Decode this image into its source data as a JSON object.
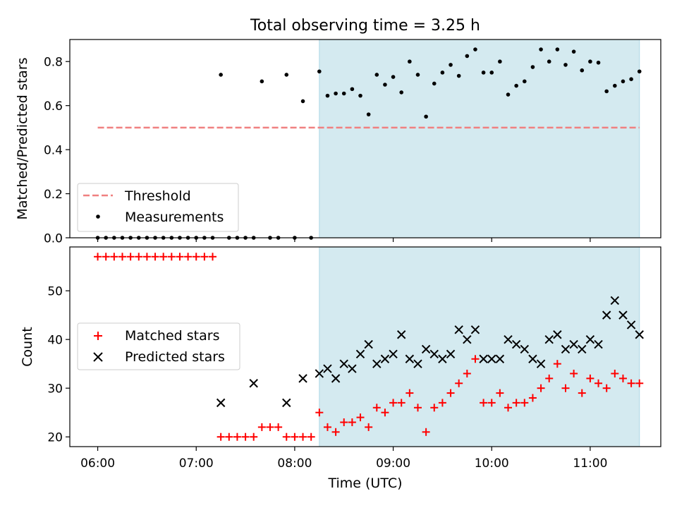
{
  "title": "Total observing time = 3.25 h",
  "colors": {
    "shade": "#d4eaf0",
    "shade_edge": "#add8e6",
    "threshold": "#f08080",
    "matched": "#ff0000",
    "predicted": "#000000",
    "measurement": "#000000"
  },
  "chart_data": [
    {
      "type": "scatter",
      "name": "ratio-panel",
      "ylabel": "Matched/Predicted stars",
      "ylim": [
        0,
        0.9
      ],
      "yticks": [
        0.0,
        0.2,
        0.4,
        0.6,
        0.8
      ],
      "ytick_labels": [
        "0.0",
        "0.2",
        "0.4",
        "0.6",
        "0.8"
      ],
      "legend_position": "lower-left",
      "shaded_interval": [
        "08:15",
        "11:30"
      ],
      "threshold": {
        "label": "Threshold",
        "value": 0.5,
        "x_range": [
          "06:00",
          "11:30"
        ]
      },
      "measurements": {
        "label": "Measurements",
        "x": [
          "06:00",
          "06:05",
          "06:10",
          "06:15",
          "06:20",
          "06:25",
          "06:30",
          "06:35",
          "06:40",
          "06:45",
          "06:50",
          "06:55",
          "07:00",
          "07:05",
          "07:10",
          "07:15",
          "07:20",
          "07:25",
          "07:30",
          "07:35",
          "07:40",
          "07:45",
          "07:50",
          "07:55",
          "08:00",
          "08:05",
          "08:10",
          "08:15",
          "08:20",
          "08:25",
          "08:30",
          "08:35",
          "08:40",
          "08:45",
          "08:50",
          "08:55",
          "09:00",
          "09:05",
          "09:10",
          "09:15",
          "09:20",
          "09:25",
          "09:30",
          "09:35",
          "09:40",
          "09:45",
          "09:50",
          "09:55",
          "10:00",
          "10:05",
          "10:10",
          "10:15",
          "10:20",
          "10:25",
          "10:30",
          "10:35",
          "10:40",
          "10:45",
          "10:50",
          "10:55",
          "11:00",
          "11:05",
          "11:10",
          "11:15",
          "11:20",
          "11:25",
          "11:30"
        ],
        "y": [
          0,
          0,
          0,
          0,
          0,
          0,
          0,
          0,
          0,
          0,
          0,
          0,
          0,
          0,
          0,
          0.74,
          0,
          0,
          0,
          0,
          0.71,
          0,
          0,
          0.74,
          0,
          0.62,
          0,
          0.755,
          0.645,
          0.655,
          0.655,
          0.675,
          0.645,
          0.56,
          0.74,
          0.695,
          0.73,
          0.66,
          0.8,
          0.74,
          0.55,
          0.7,
          0.75,
          0.785,
          0.735,
          0.825,
          0.855,
          0.75,
          0.75,
          0.8,
          0.65,
          0.69,
          0.71,
          0.775,
          0.855,
          0.8,
          0.855,
          0.785,
          0.845,
          0.76,
          0.8,
          0.795,
          0.665,
          0.69,
          0.71,
          0.72,
          0.755
        ]
      }
    },
    {
      "type": "scatter",
      "name": "count-panel",
      "ylabel": "Count",
      "xlabel": "Time (UTC)",
      "ylim": [
        18,
        59
      ],
      "yticks": [
        20,
        30,
        40,
        50
      ],
      "ytick_labels": [
        "20",
        "30",
        "40",
        "50"
      ],
      "xlim": [
        "05:43",
        "11:43"
      ],
      "xticks": [
        "06:00",
        "07:00",
        "08:00",
        "09:00",
        "10:00",
        "11:00"
      ],
      "xtick_labels": [
        "06:00",
        "07:00",
        "08:00",
        "09:00",
        "10:00",
        "11:00"
      ],
      "legend_position": "center-left",
      "shaded_interval": [
        "08:15",
        "11:30"
      ],
      "series": [
        {
          "name": "Matched stars",
          "marker": "plus",
          "x": [
            "06:00",
            "06:05",
            "06:10",
            "06:15",
            "06:20",
            "06:25",
            "06:30",
            "06:35",
            "06:40",
            "06:45",
            "06:50",
            "06:55",
            "07:00",
            "07:05",
            "07:10",
            "07:15",
            "07:20",
            "07:25",
            "07:30",
            "07:35",
            "07:40",
            "07:45",
            "07:50",
            "07:55",
            "08:00",
            "08:05",
            "08:10",
            "08:15",
            "08:20",
            "08:25",
            "08:30",
            "08:35",
            "08:40",
            "08:45",
            "08:50",
            "08:55",
            "09:00",
            "09:05",
            "09:10",
            "09:15",
            "09:20",
            "09:25",
            "09:30",
            "09:35",
            "09:40",
            "09:45",
            "09:50",
            "09:55",
            "10:00",
            "10:05",
            "10:10",
            "10:15",
            "10:20",
            "10:25",
            "10:30",
            "10:35",
            "10:40",
            "10:45",
            "10:50",
            "10:55",
            "11:00",
            "11:05",
            "11:10",
            "11:15",
            "11:20",
            "11:25",
            "11:30"
          ],
          "y": [
            57,
            57,
            57,
            57,
            57,
            57,
            57,
            57,
            57,
            57,
            57,
            57,
            57,
            57,
            57,
            20,
            20,
            20,
            20,
            20,
            22,
            22,
            22,
            20,
            20,
            20,
            20,
            25,
            22,
            21,
            23,
            23,
            24,
            22,
            26,
            25,
            27,
            27,
            29,
            26,
            21,
            26,
            27,
            29,
            31,
            33,
            36,
            27,
            27,
            29,
            26,
            27,
            27,
            28,
            30,
            32,
            35,
            30,
            33,
            29,
            32,
            31,
            30,
            33,
            32,
            31,
            31
          ]
        },
        {
          "name": "Predicted stars",
          "marker": "x",
          "x": [
            "07:15",
            "07:35",
            "07:55",
            "08:05",
            "08:15",
            "08:20",
            "08:25",
            "08:30",
            "08:35",
            "08:40",
            "08:45",
            "08:50",
            "08:55",
            "09:00",
            "09:05",
            "09:10",
            "09:15",
            "09:20",
            "09:25",
            "09:30",
            "09:35",
            "09:40",
            "09:45",
            "09:50",
            "09:55",
            "10:00",
            "10:05",
            "10:10",
            "10:15",
            "10:20",
            "10:25",
            "10:30",
            "10:35",
            "10:40",
            "10:45",
            "10:50",
            "10:55",
            "11:00",
            "11:05",
            "11:10",
            "11:15",
            "11:20",
            "11:25",
            "11:30"
          ],
          "y": [
            27,
            31,
            27,
            32,
            33,
            34,
            32,
            35,
            34,
            37,
            39,
            35,
            36,
            37,
            41,
            36,
            35,
            38,
            37,
            36,
            37,
            42,
            40,
            42,
            36,
            36,
            36,
            40,
            39,
            38,
            36,
            35,
            40,
            41,
            38,
            39,
            38,
            40,
            39,
            45,
            48,
            45,
            43,
            41
          ]
        }
      ]
    }
  ]
}
